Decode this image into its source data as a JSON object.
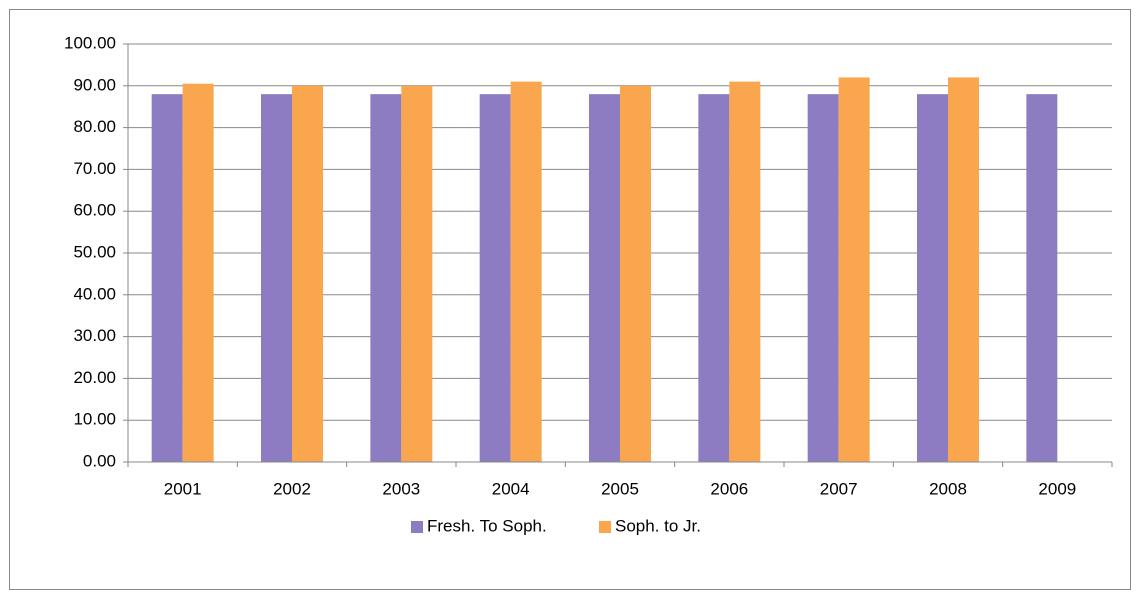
{
  "chart_data": {
    "type": "bar",
    "categories": [
      "2001",
      "2002",
      "2003",
      "2004",
      "2005",
      "2006",
      "2007",
      "2008",
      "2009"
    ],
    "series": [
      {
        "name": "Fresh. To Soph.",
        "color": "#8e7cc3",
        "values": [
          88,
          88,
          88,
          88,
          88,
          88,
          88,
          88,
          88
        ]
      },
      {
        "name": "Soph. to Jr.",
        "color": "#f9a64f",
        "values": [
          90.5,
          90,
          90,
          91,
          90,
          91,
          92,
          92,
          null
        ]
      }
    ],
    "ylim": [
      0,
      100
    ],
    "yticks": [
      {
        "value": 0,
        "label": "0.00"
      },
      {
        "value": 10,
        "label": "10.00"
      },
      {
        "value": 20,
        "label": "20.00"
      },
      {
        "value": 30,
        "label": "30.00"
      },
      {
        "value": 40,
        "label": "40.00"
      },
      {
        "value": 50,
        "label": "50.00"
      },
      {
        "value": 60,
        "label": "60.00"
      },
      {
        "value": 70,
        "label": "70.00"
      },
      {
        "value": 80,
        "label": "80.00"
      },
      {
        "value": 90,
        "label": "90.00"
      },
      {
        "value": 100,
        "label": "100.00"
      }
    ],
    "grid": true,
    "legend": "bottom"
  }
}
